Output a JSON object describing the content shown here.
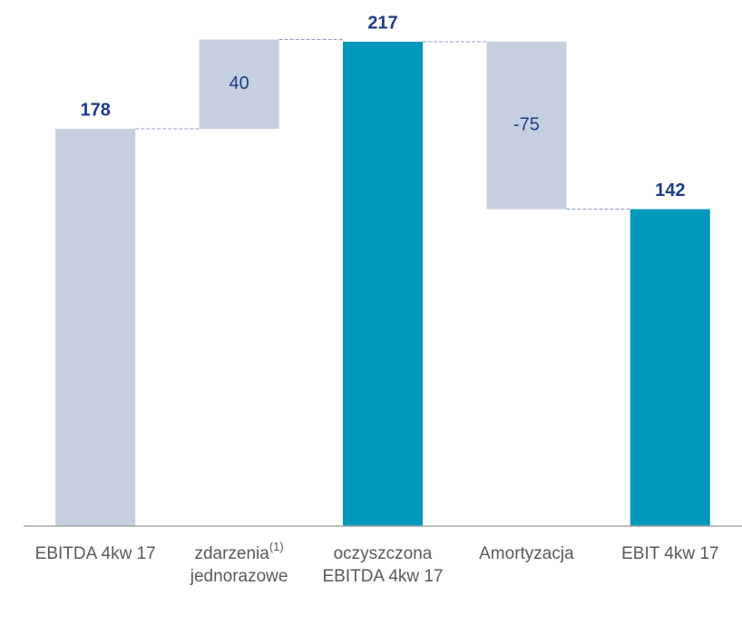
{
  "chart_data": {
    "type": "waterfall",
    "categories": [
      "EBITDA 4kw 17",
      "zdarzenia jednorazowe",
      "oczyszczona EBITDA 4kw 17",
      "Amortyzacja",
      "EBIT 4kw 17"
    ],
    "category_superscripts": [
      null,
      "(1)",
      null,
      null,
      null
    ],
    "values": [
      178,
      40,
      217,
      -75,
      142
    ],
    "kinds": [
      "total",
      "delta",
      "total",
      "delta",
      "total"
    ],
    "colors": [
      "#c5cfe0",
      "#c5cfe0",
      "#0099bb",
      "#c5cfe0",
      "#0099bb"
    ],
    "label_color": "#1f3c88",
    "ylim": [
      0,
      217
    ]
  }
}
